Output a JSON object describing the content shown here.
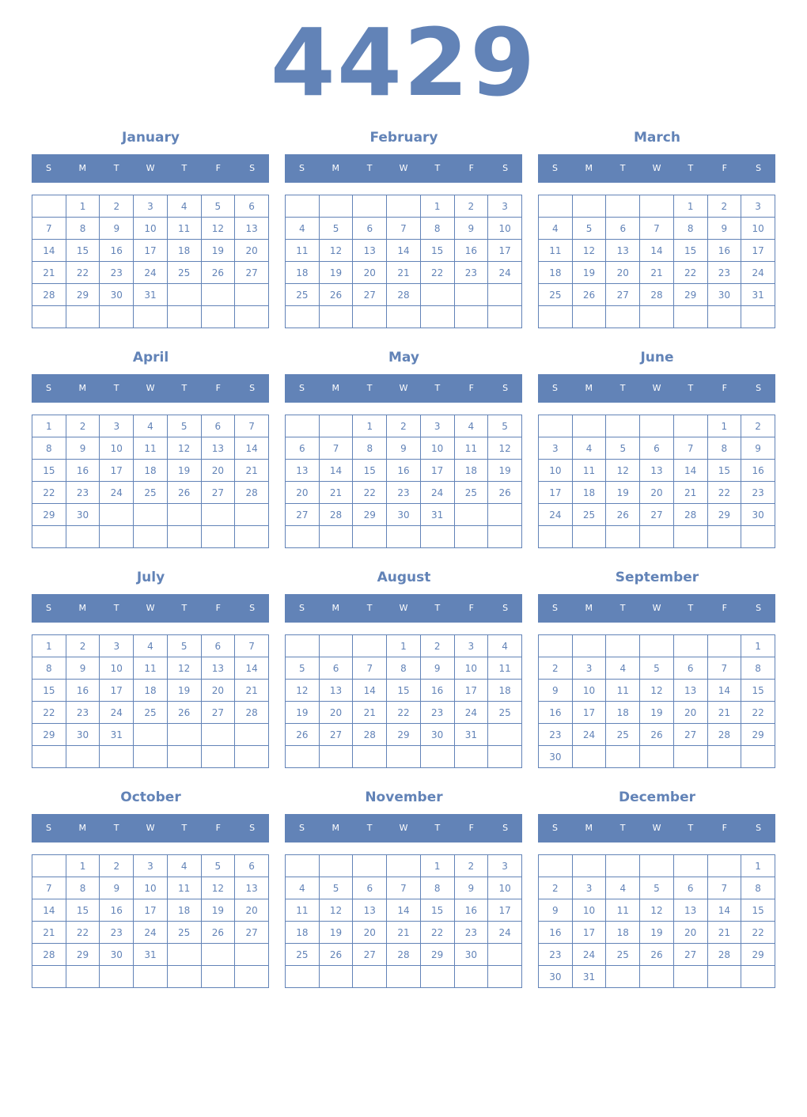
{
  "year": "4429",
  "weekday_labels": [
    "S",
    "M",
    "T",
    "W",
    "T",
    "F",
    "S"
  ],
  "colors": {
    "accent": "#6283b7",
    "header_text": "#ffffff"
  },
  "months": [
    {
      "name": "January",
      "start_weekday": 1,
      "days": 31
    },
    {
      "name": "February",
      "start_weekday": 4,
      "days": 28
    },
    {
      "name": "March",
      "start_weekday": 4,
      "days": 31
    },
    {
      "name": "April",
      "start_weekday": 0,
      "days": 30
    },
    {
      "name": "May",
      "start_weekday": 2,
      "days": 31
    },
    {
      "name": "June",
      "start_weekday": 5,
      "days": 30
    },
    {
      "name": "July",
      "start_weekday": 0,
      "days": 31
    },
    {
      "name": "August",
      "start_weekday": 3,
      "days": 31
    },
    {
      "name": "September",
      "start_weekday": 6,
      "days": 30
    },
    {
      "name": "October",
      "start_weekday": 1,
      "days": 31
    },
    {
      "name": "November",
      "start_weekday": 4,
      "days": 30
    },
    {
      "name": "December",
      "start_weekday": 6,
      "days": 31
    }
  ]
}
